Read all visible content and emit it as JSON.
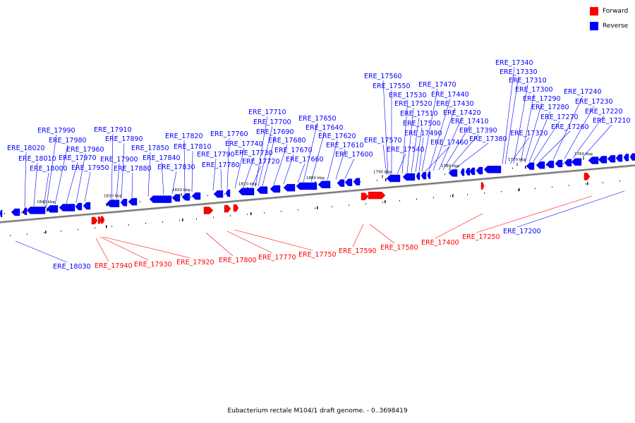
{
  "legend": [
    {
      "label": "Forward",
      "color": "#ff0000"
    },
    {
      "label": "Reverse",
      "color": "#0000ff"
    }
  ],
  "caption": "Eubacterium rectale M104/1 draft genome. - 0..3698419",
  "colors": {
    "forward": "#ff0000",
    "reverse": "#0000ff",
    "axis": "#888888"
  },
  "ticks": [
    "1840 kbp",
    "1830 kbp",
    "1820 kbp",
    "1810 kbp",
    "1800 kbp",
    "1790 kbp",
    "1780 kbp",
    "1770 kbp",
    "1760 kbp"
  ],
  "reverse_labels": [
    "ERE_18020",
    "ERE_18010",
    "ERE_18000",
    "ERE_17990",
    "ERE_17980",
    "ERE_17970",
    "ERE_17960",
    "ERE_17950",
    "ERE_17910",
    "ERE_17900",
    "ERE_17890",
    "ERE_17880",
    "ERE_17850",
    "ERE_17840",
    "ERE_17830",
    "ERE_17820",
    "ERE_17810",
    "ERE_17790",
    "ERE_17780",
    "ERE_17760",
    "ERE_17740",
    "ERE_17730",
    "ERE_17720",
    "ERE_17710",
    "ERE_17700",
    "ERE_17690",
    "ERE_17680",
    "ERE_17670",
    "ERE_17660",
    "ERE_17650",
    "ERE_17640",
    "ERE_17620",
    "ERE_17610",
    "ERE_17600",
    "ERE_17570",
    "ERE_17560",
    "ERE_17550",
    "ERE_17540",
    "ERE_17530",
    "ERE_17520",
    "ERE_17510",
    "ERE_17500",
    "ERE_17490",
    "ERE_17470",
    "ERE_17460",
    "ERE_17440",
    "ERE_17430",
    "ERE_17420",
    "ERE_17410",
    "ERE_17390",
    "ERE_17380",
    "ERE_17340",
    "ERE_17330",
    "ERE_17320",
    "ERE_17310",
    "ERE_17300",
    "ERE_17290",
    "ERE_17280",
    "ERE_17270",
    "ERE_17260",
    "ERE_17240",
    "ERE_17230",
    "ERE_17220",
    "ERE_17210"
  ],
  "lower_labels": [
    {
      "label": "ERE_18030",
      "strand": "reverse"
    },
    {
      "label": "ERE_17940",
      "strand": "forward"
    },
    {
      "label": "ERE_17930",
      "strand": "forward"
    },
    {
      "label": "ERE_17920",
      "strand": "forward"
    },
    {
      "label": "ERE_17800",
      "strand": "forward"
    },
    {
      "label": "ERE_17770",
      "strand": "forward"
    },
    {
      "label": "ERE_17750",
      "strand": "forward"
    },
    {
      "label": "ERE_17590",
      "strand": "forward"
    },
    {
      "label": "ERE_17580",
      "strand": "forward"
    },
    {
      "label": "ERE_17400",
      "strand": "forward"
    },
    {
      "label": "ERE_17250",
      "strand": "forward"
    },
    {
      "label": "ERE_17200",
      "strand": "reverse"
    }
  ]
}
